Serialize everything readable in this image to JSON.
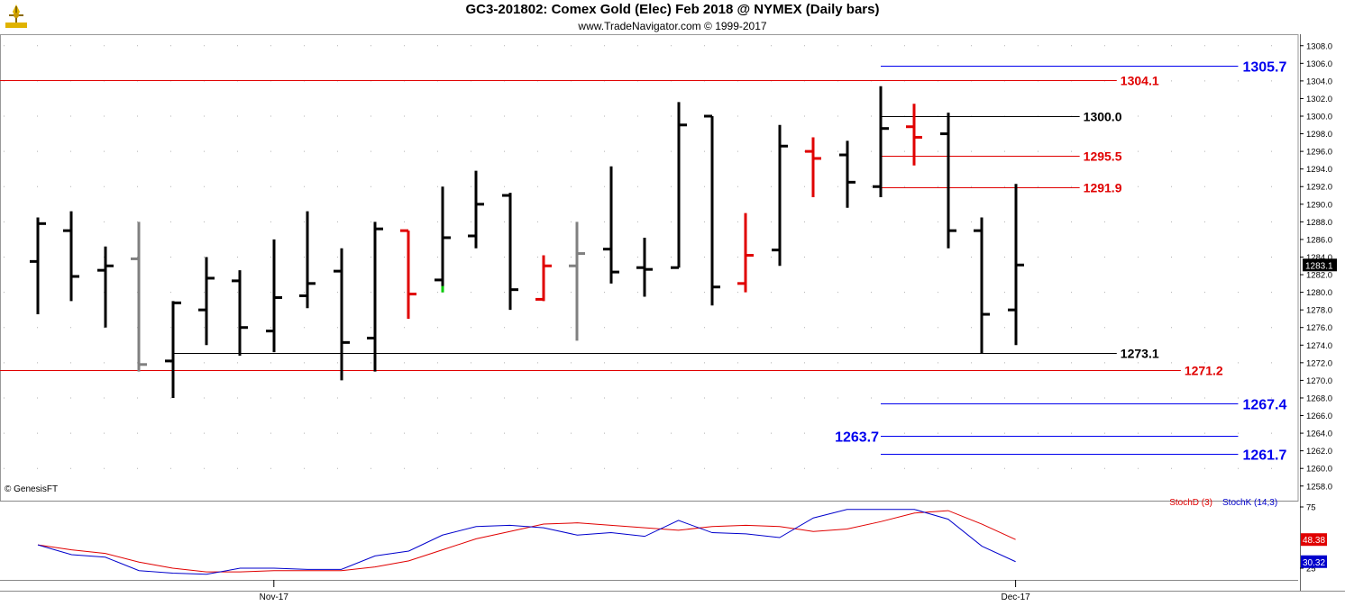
{
  "header": {
    "title": "GC3-201802:  Comex Gold (Elec) Feb 2018 @ NYMEX  (Daily bars)",
    "subtitle": "www.TradeNavigator.com © 1999-2017",
    "credit": "© GenesisFT"
  },
  "colors": {
    "up_bar": "#000000",
    "inside_bar": "#e00000",
    "outside_bar": "#808080",
    "signal_bar": "#00cc00",
    "level_red": "#e00000",
    "level_blue": "#0000ee",
    "level_black": "#000000",
    "stoch_d": "#e00000",
    "stoch_k": "#0000cc",
    "grid": "#b0b0b0"
  },
  "chart_data": [
    {
      "type": "ohlc",
      "title": "GC3-201802:  Comex Gold (Elec) Feb 2018 @ NYMEX  (Daily bars)",
      "y_range": [
        1257,
        1309
      ],
      "y_ticks": [
        "1308.0",
        "1306.0",
        "1304.0",
        "1302.0",
        "1300.0",
        "1298.0",
        "1296.0",
        "1294.0",
        "1292.0",
        "1290.0",
        "1288.0",
        "1286.0",
        "1284.0",
        "1282.0",
        "1280.0",
        "1278.0",
        "1276.0",
        "1274.0",
        "1272.0",
        "1270.0",
        "1268.0",
        "1266.0",
        "1264.0",
        "1262.0",
        "1260.0",
        "1258.0"
      ],
      "last_price_label": "1283.1",
      "x_labels": [
        {
          "bar": 7,
          "text": "Nov-17"
        },
        {
          "bar": 29,
          "text": "Dec-17"
        }
      ],
      "bars": [
        {
          "o": 1283.5,
          "h": 1288.5,
          "l": 1277.5,
          "c": 1287.8,
          "color": "black"
        },
        {
          "o": 1287.0,
          "h": 1289.2,
          "l": 1279.0,
          "c": 1281.8,
          "color": "black"
        },
        {
          "o": 1282.5,
          "h": 1285.2,
          "l": 1276.0,
          "c": 1283.0,
          "color": "black"
        },
        {
          "o": 1283.8,
          "h": 1288.0,
          "l": 1271.0,
          "c": 1271.8,
          "color": "gray"
        },
        {
          "o": 1272.2,
          "h": 1279.0,
          "l": 1268.0,
          "c": 1278.8,
          "color": "black"
        },
        {
          "o": 1278.0,
          "h": 1284.0,
          "l": 1274.0,
          "c": 1281.6,
          "color": "black"
        },
        {
          "o": 1281.3,
          "h": 1282.5,
          "l": 1272.8,
          "c": 1276.0,
          "color": "black"
        },
        {
          "o": 1275.6,
          "h": 1286.0,
          "l": 1273.2,
          "c": 1279.4,
          "color": "black"
        },
        {
          "o": 1279.6,
          "h": 1289.2,
          "l": 1278.2,
          "c": 1281.0,
          "color": "black"
        },
        {
          "o": 1282.4,
          "h": 1285.0,
          "l": 1270.0,
          "c": 1274.3,
          "color": "black"
        },
        {
          "o": 1274.8,
          "h": 1288.0,
          "l": 1271.0,
          "c": 1287.2,
          "color": "black"
        },
        {
          "o": 1287.0,
          "h": 1287.0,
          "l": 1277.0,
          "c": 1279.8,
          "color": "red"
        },
        {
          "o": 1281.4,
          "h": 1292.0,
          "l": 1280.0,
          "c": 1286.2,
          "color": "black",
          "low_color": "green"
        },
        {
          "o": 1286.4,
          "h": 1293.8,
          "l": 1285.0,
          "c": 1290.0,
          "color": "black"
        },
        {
          "o": 1291.0,
          "h": 1291.3,
          "l": 1278.0,
          "c": 1280.3,
          "color": "black"
        },
        {
          "o": 1279.2,
          "h": 1284.2,
          "l": 1279.0,
          "c": 1283.0,
          "color": "red"
        },
        {
          "o": 1283.0,
          "h": 1288.0,
          "l": 1274.5,
          "c": 1284.4,
          "color": "gray"
        },
        {
          "o": 1284.9,
          "h": 1294.3,
          "l": 1281.0,
          "c": 1282.3,
          "color": "black"
        },
        {
          "o": 1282.8,
          "h": 1286.2,
          "l": 1279.5,
          "c": 1282.6,
          "color": "black"
        },
        {
          "o": 1282.8,
          "h": 1301.6,
          "l": 1282.8,
          "c": 1299.0,
          "color": "black"
        },
        {
          "o": 1300.0,
          "h": 1300.0,
          "l": 1278.5,
          "c": 1280.6,
          "color": "black"
        },
        {
          "o": 1281.0,
          "h": 1289.0,
          "l": 1280.0,
          "c": 1284.2,
          "color": "red"
        },
        {
          "o": 1284.8,
          "h": 1299.0,
          "l": 1283.0,
          "c": 1296.6,
          "color": "black"
        },
        {
          "o": 1296.0,
          "h": 1297.6,
          "l": 1290.8,
          "c": 1295.2,
          "color": "red"
        },
        {
          "o": 1295.6,
          "h": 1297.2,
          "l": 1289.6,
          "c": 1292.5,
          "color": "black"
        },
        {
          "o": 1292.0,
          "h": 1303.4,
          "l": 1290.8,
          "c": 1298.6,
          "color": "black"
        },
        {
          "o": 1298.8,
          "h": 1301.4,
          "l": 1294.4,
          "c": 1297.6,
          "color": "red"
        },
        {
          "o": 1298.0,
          "h": 1300.4,
          "l": 1285.0,
          "c": 1287.0,
          "color": "black"
        },
        {
          "o": 1287.0,
          "h": 1288.5,
          "l": 1273.0,
          "c": 1277.5,
          "color": "black"
        },
        {
          "o": 1278.0,
          "h": 1292.3,
          "l": 1274.0,
          "c": 1283.1,
          "color": "black"
        }
      ],
      "levels": [
        {
          "value": 1305.7,
          "label": "1305.7",
          "color": "blue",
          "from_bar": 25,
          "to_bar": 35.6,
          "label_side": "right",
          "bold": true
        },
        {
          "value": 1304.1,
          "label": "1304.1",
          "color": "red",
          "from_bar": -1.2,
          "to_bar": 32,
          "label_side": "right",
          "bold": true
        },
        {
          "value": 1300.0,
          "label": "1300.0",
          "color": "black",
          "from_bar": 25,
          "to_bar": 30.9,
          "label_side": "right",
          "bold": true
        },
        {
          "value": 1295.5,
          "label": "1295.5",
          "color": "red",
          "from_bar": 25,
          "to_bar": 30.9,
          "label_side": "right",
          "bold": true
        },
        {
          "value": 1291.9,
          "label": "1291.9",
          "color": "red",
          "from_bar": 25,
          "to_bar": 30.9,
          "label_side": "right",
          "bold": true
        },
        {
          "value": 1273.1,
          "label": "1273.1",
          "color": "black",
          "from_bar": 4,
          "to_bar": 32,
          "label_side": "right",
          "bold": true
        },
        {
          "value": 1271.2,
          "label": "1271.2",
          "color": "red",
          "from_bar": -1.2,
          "to_bar": 33.9,
          "label_side": "right",
          "bold": true
        },
        {
          "value": 1267.4,
          "label": "1267.4",
          "color": "blue",
          "from_bar": 25,
          "to_bar": 35.6,
          "label_side": "right",
          "bold": true
        },
        {
          "value": 1263.7,
          "label": "1263.7",
          "color": "blue",
          "from_bar": 25,
          "to_bar": 35.6,
          "label_side": "left",
          "bold": true
        },
        {
          "value": 1261.7,
          "label": "1261.7",
          "color": "blue",
          "from_bar": 25,
          "to_bar": 35.6,
          "label_side": "right",
          "bold": true
        }
      ]
    },
    {
      "type": "line",
      "title": "",
      "y_range": [
        20,
        80
      ],
      "y_ticks": [
        "75",
        "25"
      ],
      "legend": [
        "StochD (3)",
        "StochK (14,3)"
      ],
      "series": [
        {
          "name": "StochD (3)",
          "color": "red",
          "last_label": "48.38",
          "values": [
            44,
            40,
            37,
            30,
            25,
            22,
            22,
            23,
            23,
            23,
            26,
            31,
            40,
            49,
            55,
            61,
            62,
            60,
            58,
            56,
            59,
            60,
            59,
            55,
            57,
            63,
            70,
            72,
            61,
            48.38
          ]
        },
        {
          "name": "StochK (14,3)",
          "color": "blue",
          "last_label": "30.32",
          "values": [
            44,
            36,
            34,
            23,
            21,
            20,
            25,
            25,
            24,
            24,
            35,
            39,
            52,
            59,
            60,
            58,
            52,
            54,
            51,
            64,
            54,
            53,
            50,
            66,
            73,
            73,
            73,
            65,
            43,
            30.32
          ]
        }
      ]
    }
  ]
}
